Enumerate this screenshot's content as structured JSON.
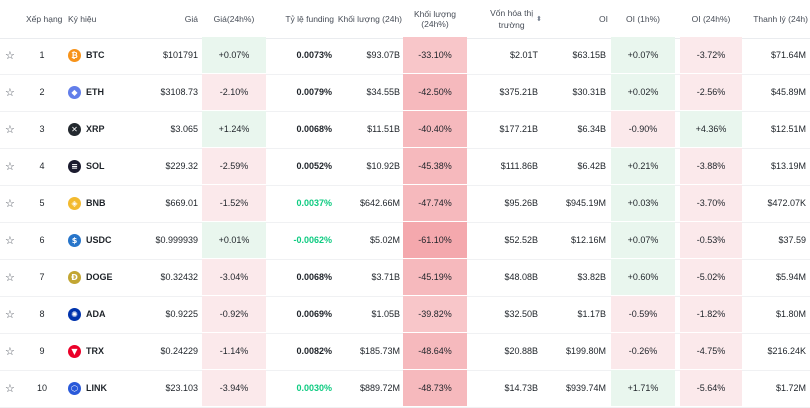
{
  "headers": {
    "rank": "Xếp hạng",
    "symbol": "Ký hiệu",
    "price": "Giá",
    "price_change": "Giá(24h%)",
    "funding": "Tỷ lệ funding",
    "volume": "Khối lượng (24h)",
    "volume_change": "Khối lượng (24h%)",
    "market_cap_line1": "Vốn hóa thị",
    "market_cap_line2": "trường",
    "oi": "OI",
    "oi_1h": "OI (1h%)",
    "oi_24h": "OI (24h%)",
    "liquidation": "Thanh lý (24h)"
  },
  "rows": [
    {
      "rank": "1",
      "symbol": "BTC",
      "icon": "bitcoin-icon",
      "icon_color": "#f7931a",
      "icon_glyph": "₿",
      "price": "$101791",
      "price_change": "+0.07%",
      "funding": "0.0073%",
      "volume": "$93.07B",
      "volume_change": "-33.10%",
      "market_cap": "$2.01T",
      "oi": "$63.15B",
      "oi_1h": "+0.07%",
      "oi_24h": "-3.72%",
      "liquidation": "$71.64M"
    },
    {
      "rank": "2",
      "symbol": "ETH",
      "icon": "ethereum-icon",
      "icon_color": "#627eea",
      "icon_glyph": "◆",
      "price": "$3108.73",
      "price_change": "-2.10%",
      "funding": "0.0079%",
      "volume": "$34.55B",
      "volume_change": "-42.50%",
      "market_cap": "$375.21B",
      "oi": "$30.31B",
      "oi_1h": "+0.02%",
      "oi_24h": "-2.56%",
      "liquidation": "$45.89M"
    },
    {
      "rank": "3",
      "symbol": "XRP",
      "icon": "xrp-icon",
      "icon_color": "#23292f",
      "icon_glyph": "✕",
      "price": "$3.065",
      "price_change": "+1.24%",
      "funding": "0.0068%",
      "volume": "$11.51B",
      "volume_change": "-40.40%",
      "market_cap": "$177.21B",
      "oi": "$6.34B",
      "oi_1h": "-0.90%",
      "oi_24h": "+4.36%",
      "liquidation": "$12.51M"
    },
    {
      "rank": "4",
      "symbol": "SOL",
      "icon": "solana-icon",
      "icon_color": "#1b1b2f",
      "icon_glyph": "≡",
      "price": "$229.32",
      "price_change": "-2.59%",
      "funding": "0.0052%",
      "volume": "$10.92B",
      "volume_change": "-45.38%",
      "market_cap": "$111.86B",
      "oi": "$6.42B",
      "oi_1h": "+0.21%",
      "oi_24h": "-3.88%",
      "liquidation": "$13.19M"
    },
    {
      "rank": "5",
      "symbol": "BNB",
      "icon": "bnb-icon",
      "icon_color": "#f3ba2f",
      "icon_glyph": "◈",
      "price": "$669.01",
      "price_change": "-1.52%",
      "funding": "0.0037%",
      "volume": "$642.66M",
      "volume_change": "-47.74%",
      "market_cap": "$95.26B",
      "oi": "$945.19M",
      "oi_1h": "+0.03%",
      "oi_24h": "-3.70%",
      "liquidation": "$472.07K"
    },
    {
      "rank": "6",
      "symbol": "USDC",
      "icon": "usdc-icon",
      "icon_color": "#2775ca",
      "icon_glyph": "$",
      "price": "$0.999939",
      "price_change": "+0.01%",
      "funding": "-0.0062%",
      "volume": "$5.02M",
      "volume_change": "-61.10%",
      "market_cap": "$52.52B",
      "oi": "$12.16M",
      "oi_1h": "+0.07%",
      "oi_24h": "-0.53%",
      "liquidation": "$37.59"
    },
    {
      "rank": "7",
      "symbol": "DOGE",
      "icon": "doge-icon",
      "icon_color": "#c2a633",
      "icon_glyph": "Ð",
      "price": "$0.32432",
      "price_change": "-3.04%",
      "funding": "0.0068%",
      "volume": "$3.71B",
      "volume_change": "-45.19%",
      "market_cap": "$48.08B",
      "oi": "$3.82B",
      "oi_1h": "+0.60%",
      "oi_24h": "-5.02%",
      "liquidation": "$5.94M"
    },
    {
      "rank": "8",
      "symbol": "ADA",
      "icon": "cardano-icon",
      "icon_color": "#0033ad",
      "icon_glyph": "✺",
      "price": "$0.9225",
      "price_change": "-0.92%",
      "funding": "0.0069%",
      "volume": "$1.05B",
      "volume_change": "-39.82%",
      "market_cap": "$32.50B",
      "oi": "$1.17B",
      "oi_1h": "-0.59%",
      "oi_24h": "-1.82%",
      "liquidation": "$1.80M"
    },
    {
      "rank": "9",
      "symbol": "TRX",
      "icon": "tron-icon",
      "icon_color": "#eb0029",
      "icon_glyph": "▼",
      "price": "$0.24229",
      "price_change": "-1.14%",
      "funding": "0.0082%",
      "volume": "$185.73M",
      "volume_change": "-48.64%",
      "market_cap": "$20.88B",
      "oi": "$199.80M",
      "oi_1h": "-0.26%",
      "oi_24h": "-4.75%",
      "liquidation": "$216.24K"
    },
    {
      "rank": "10",
      "symbol": "LINK",
      "icon": "chainlink-icon",
      "icon_color": "#2a5ada",
      "icon_glyph": "⬡",
      "price": "$23.103",
      "price_change": "-3.94%",
      "funding": "0.0030%",
      "volume": "$889.72M",
      "volume_change": "-48.73%",
      "market_cap": "$14.73B",
      "oi": "$939.74M",
      "oi_1h": "+1.71%",
      "oi_24h": "-5.64%",
      "liquidation": "$1.72M"
    }
  ],
  "star_glyph": "☆",
  "sort_glyph": "⬍"
}
